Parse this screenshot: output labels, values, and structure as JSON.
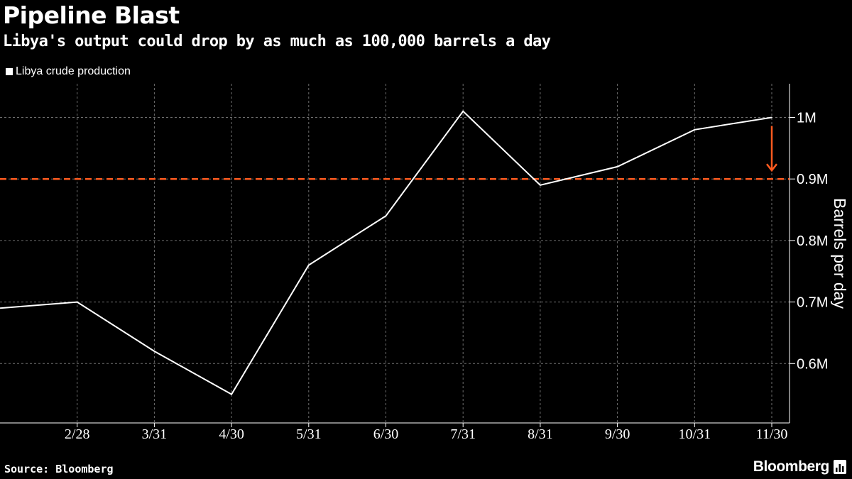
{
  "header": {
    "title": "Pipeline Blast",
    "subtitle": "Libya's output could drop by as much as 100,000 barrels a day"
  },
  "footer": {
    "source": "Source: Bloomberg",
    "logo": "Bloomberg",
    "logo_icon": "bloomberg-chart-icon"
  },
  "colors": {
    "background": "#000000",
    "line": "#ffffff",
    "grid": "#6e6e6e",
    "reference": "#ff5a1f",
    "text": "#ffffff"
  },
  "chart_data": {
    "type": "line",
    "title": "Pipeline Blast",
    "subtitle": "Libya's output could drop by as much as 100,000 barrels a day",
    "ylabel": "Barrels per day",
    "xlabel": "",
    "x": [
      "",
      "2/28",
      "3/31",
      "4/30",
      "5/31",
      "6/30",
      "7/31",
      "8/31",
      "9/30",
      "10/31",
      "11/30"
    ],
    "x_tick_labels": [
      "2/28",
      "3/31",
      "4/30",
      "5/31",
      "6/30",
      "7/31",
      "8/31",
      "9/30",
      "10/31",
      "11/30"
    ],
    "series": [
      {
        "name": "Libya crude production",
        "values": [
          690000,
          700000,
          620000,
          550000,
          760000,
          840000,
          1010000,
          890000,
          920000,
          980000,
          1000000
        ]
      }
    ],
    "ylim": [
      500000,
      1050000
    ],
    "y_ticks": [
      600000,
      700000,
      800000,
      900000,
      1000000
    ],
    "y_tick_labels": [
      "0.6M",
      "0.7M",
      "0.8M",
      "0.9M",
      "1M"
    ],
    "y_axis_side": "right",
    "grid": true,
    "legend_position": "top-left",
    "reference_line": {
      "value": 900000,
      "style": "dashed"
    },
    "annotation": {
      "type": "down-arrow",
      "from": 1000000,
      "to": 900000,
      "at": "11/30"
    }
  }
}
